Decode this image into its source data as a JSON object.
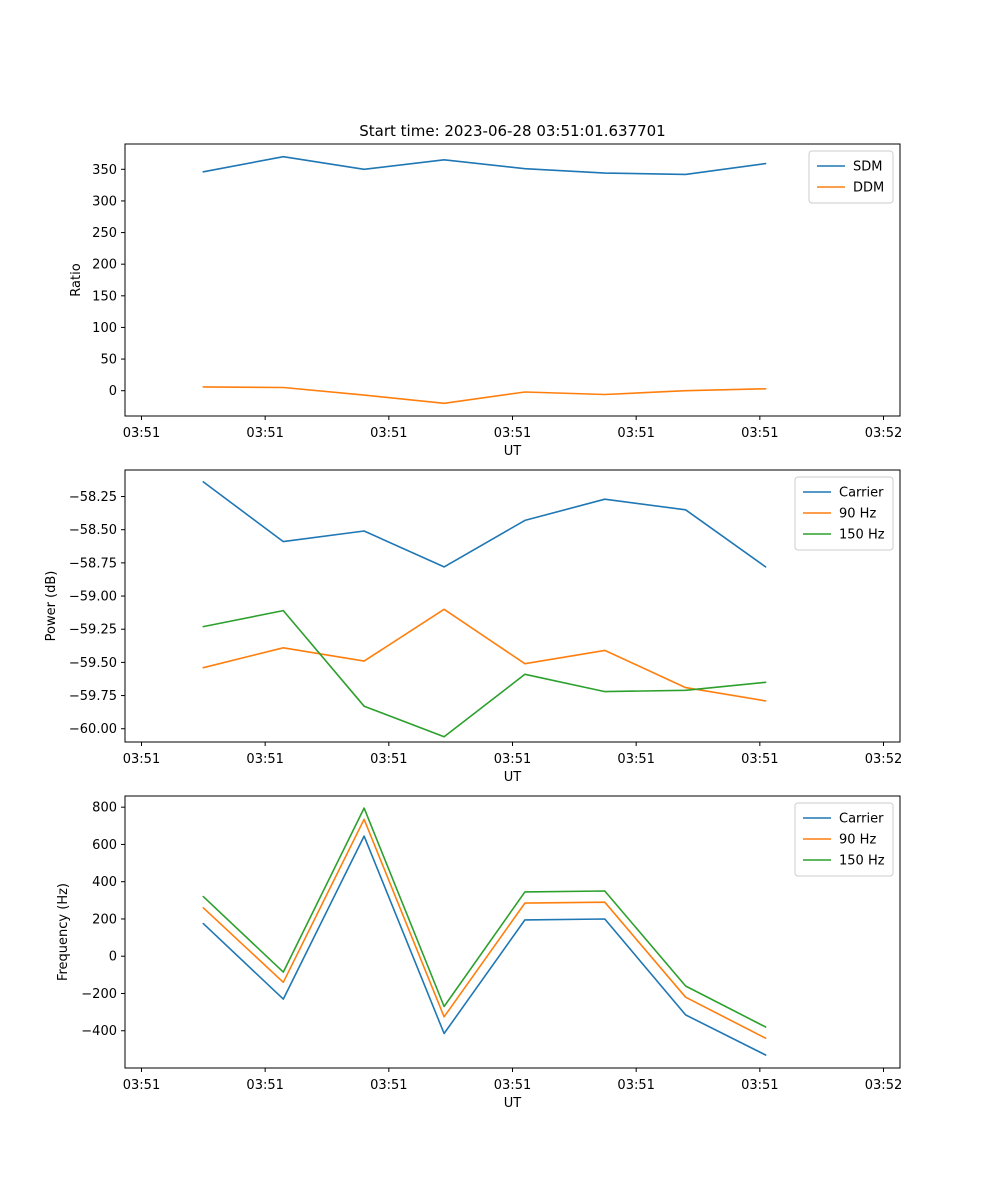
{
  "chart_data": [
    {
      "type": "line",
      "title": "Start time: 2023-06-28 03:51:01.637701",
      "xlabel": "UT",
      "ylabel": "Ratio",
      "xlim": [
        -0.2,
        9.2
      ],
      "ylim": [
        -40,
        390
      ],
      "x_ticks": [
        {
          "v": 0,
          "label": "03:51"
        },
        {
          "v": 1.5,
          "label": "03:51"
        },
        {
          "v": 3,
          "label": "03:51"
        },
        {
          "v": 4.5,
          "label": "03:51"
        },
        {
          "v": 6,
          "label": "03:51"
        },
        {
          "v": 7.5,
          "label": "03:51"
        },
        {
          "v": 9,
          "label": "03:52"
        }
      ],
      "y_ticks": [
        0,
        50,
        100,
        150,
        200,
        250,
        300,
        350
      ],
      "x": [
        0.75,
        1.72,
        2.7,
        3.67,
        4.65,
        5.62,
        6.6,
        7.57
      ],
      "series": [
        {
          "name": "SDM",
          "color": "#1f77b4",
          "values": [
            346,
            370,
            350,
            365,
            351,
            344,
            342,
            359
          ]
        },
        {
          "name": "DDM",
          "color": "#ff7f0e",
          "values": [
            6,
            5,
            -7,
            -20,
            -2,
            -6,
            0,
            3
          ]
        }
      ],
      "legend": "top-right"
    },
    {
      "type": "line",
      "xlabel": "UT",
      "ylabel": "Power (dB)",
      "xlim": [
        -0.2,
        9.2
      ],
      "ylim": [
        -60.1,
        -58.05
      ],
      "x_ticks": [
        {
          "v": 0,
          "label": "03:51"
        },
        {
          "v": 1.5,
          "label": "03:51"
        },
        {
          "v": 3,
          "label": "03:51"
        },
        {
          "v": 4.5,
          "label": "03:51"
        },
        {
          "v": 6,
          "label": "03:51"
        },
        {
          "v": 7.5,
          "label": "03:51"
        },
        {
          "v": 9,
          "label": "03:52"
        }
      ],
      "y_ticks": [
        {
          "v": -58.25,
          "label": "−58.25"
        },
        {
          "v": -58.5,
          "label": "−58.50"
        },
        {
          "v": -58.75,
          "label": "−58.75"
        },
        {
          "v": -59.0,
          "label": "−59.00"
        },
        {
          "v": -59.25,
          "label": "−59.25"
        },
        {
          "v": -59.5,
          "label": "−59.50"
        },
        {
          "v": -59.75,
          "label": "−59.75"
        },
        {
          "v": -60.0,
          "label": "−60.00"
        }
      ],
      "x": [
        0.75,
        1.72,
        2.7,
        3.67,
        4.65,
        5.62,
        6.6,
        7.57
      ],
      "series": [
        {
          "name": "Carrier",
          "color": "#1f77b4",
          "values": [
            -58.14,
            -58.59,
            -58.51,
            -58.78,
            -58.43,
            -58.27,
            -58.35,
            -58.78
          ]
        },
        {
          "name": "90 Hz",
          "color": "#ff7f0e",
          "values": [
            -59.54,
            -59.39,
            -59.49,
            -59.1,
            -59.51,
            -59.41,
            -59.69,
            -59.79
          ]
        },
        {
          "name": "150 Hz",
          "color": "#2ca02c",
          "values": [
            -59.23,
            -59.11,
            -59.83,
            -60.06,
            -59.59,
            -59.72,
            -59.71,
            -59.65
          ]
        }
      ],
      "legend": "top-right"
    },
    {
      "type": "line",
      "xlabel": "UT",
      "ylabel": "Frequency (Hz)",
      "xlim": [
        -0.2,
        9.2
      ],
      "ylim": [
        -600,
        860
      ],
      "x_ticks": [
        {
          "v": 0,
          "label": "03:51"
        },
        {
          "v": 1.5,
          "label": "03:51"
        },
        {
          "v": 3,
          "label": "03:51"
        },
        {
          "v": 4.5,
          "label": "03:51"
        },
        {
          "v": 6,
          "label": "03:51"
        },
        {
          "v": 7.5,
          "label": "03:51"
        },
        {
          "v": 9,
          "label": "03:52"
        }
      ],
      "y_ticks": [
        {
          "v": 800,
          "label": "800"
        },
        {
          "v": 600,
          "label": "600"
        },
        {
          "v": 400,
          "label": "400"
        },
        {
          "v": 200,
          "label": "200"
        },
        {
          "v": 0,
          "label": "0"
        },
        {
          "v": -200,
          "label": "−200"
        },
        {
          "v": -400,
          "label": "−400"
        }
      ],
      "x": [
        0.75,
        1.72,
        2.7,
        3.67,
        4.65,
        5.62,
        6.6,
        7.57
      ],
      "series": [
        {
          "name": "Carrier",
          "color": "#1f77b4",
          "values": [
            175,
            -230,
            645,
            -415,
            195,
            200,
            -315,
            -530
          ]
        },
        {
          "name": "90 Hz",
          "color": "#ff7f0e",
          "values": [
            260,
            -140,
            735,
            -325,
            285,
            290,
            -220,
            -440
          ]
        },
        {
          "name": "150 Hz",
          "color": "#2ca02c",
          "values": [
            320,
            -85,
            795,
            -270,
            345,
            350,
            -160,
            -380
          ]
        }
      ],
      "legend": "top-right"
    }
  ]
}
